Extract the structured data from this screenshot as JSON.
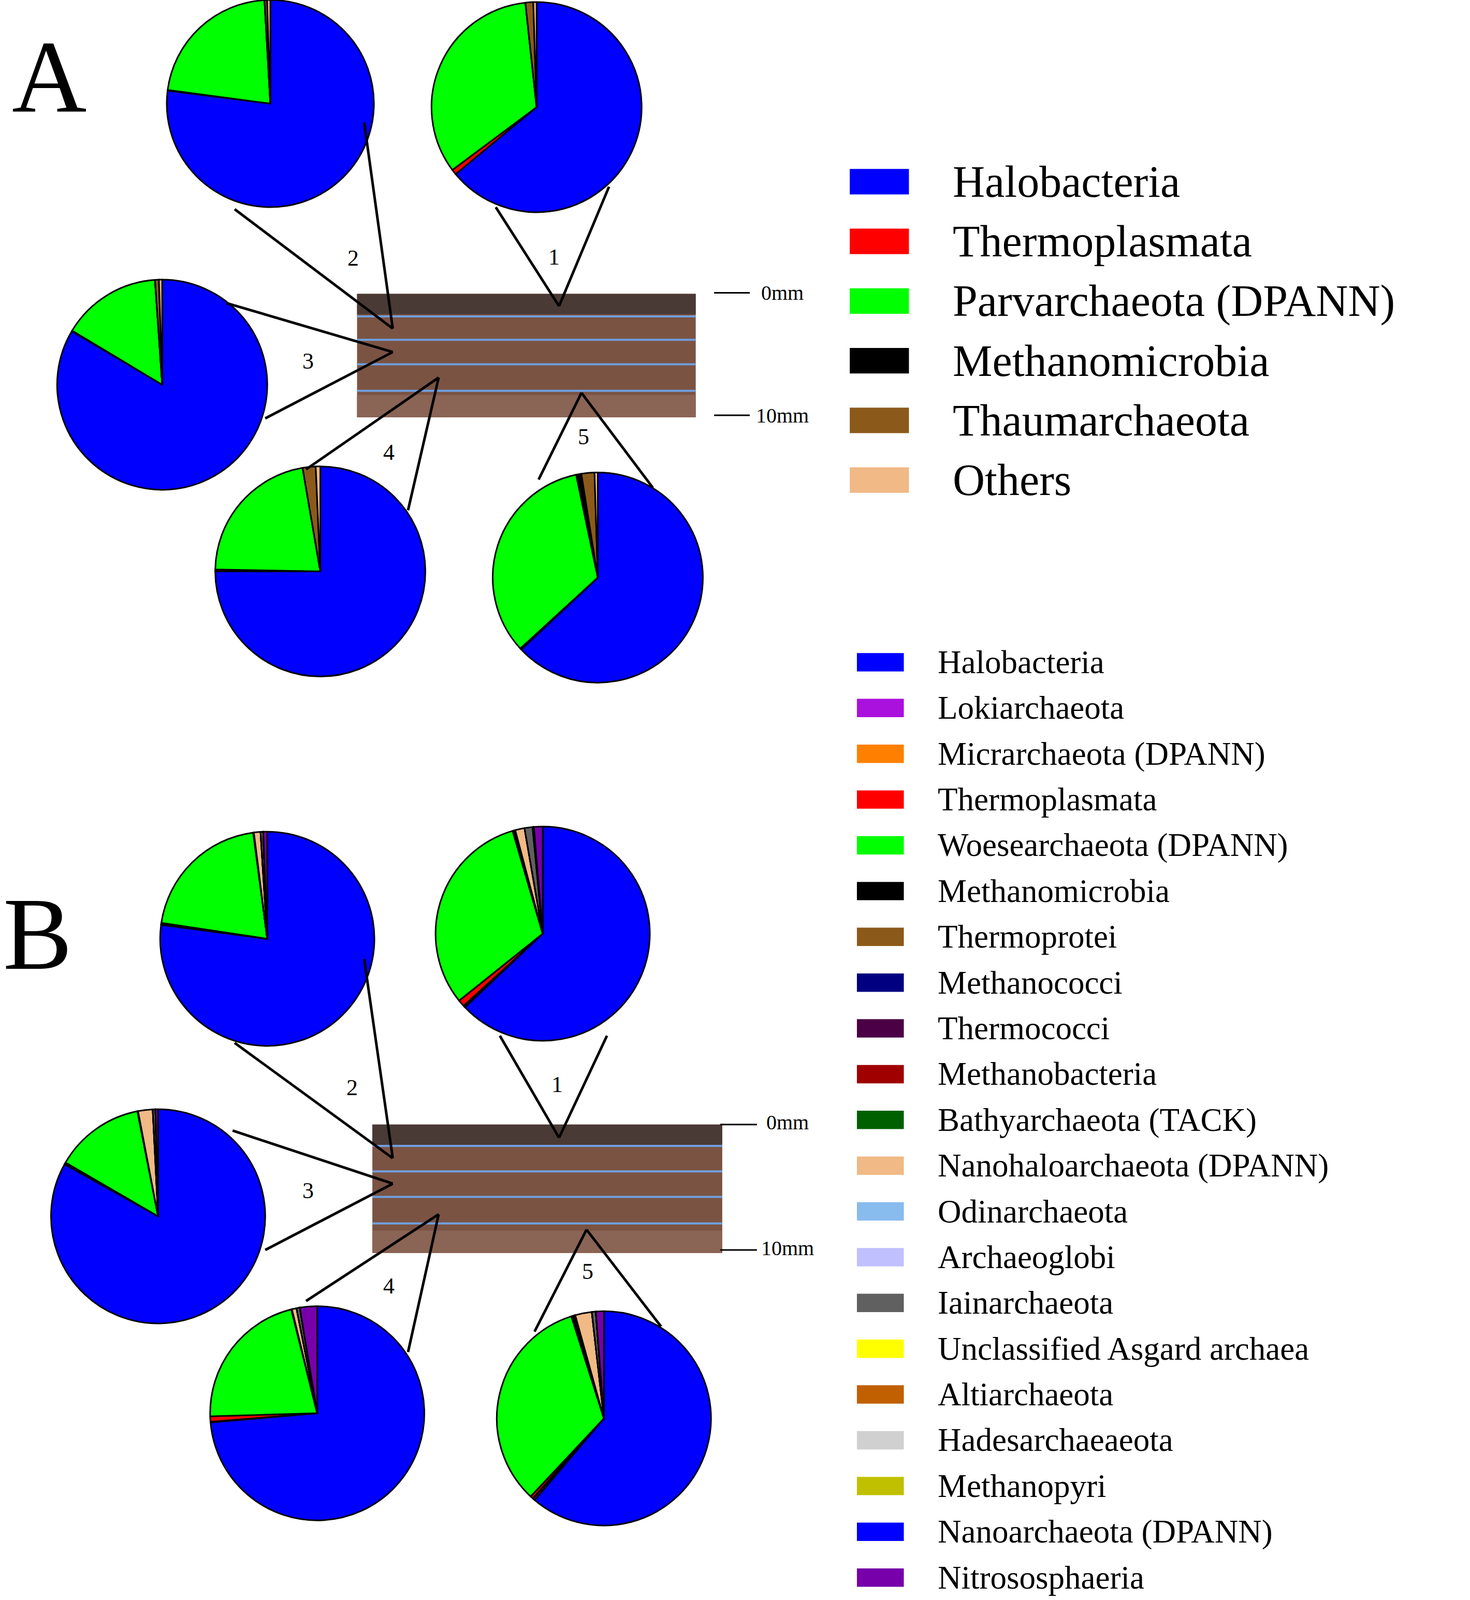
{
  "chart_data": [
    {
      "type": "pie",
      "title": "A",
      "categories": [
        "Halobacteria",
        "Thermoplasmata",
        "Parvarchaeota (DPANN)",
        "Methanomicrobia",
        "Thaumarchaeota",
        "Others"
      ],
      "colors": [
        "#0000ff",
        "#ff0000",
        "#00ff00",
        "#000000",
        "#8b5a1a",
        "#f0b985"
      ],
      "series": [
        {
          "name": "1",
          "values": [
            64,
            0.8,
            33.5,
            0,
            1.2,
            0.5
          ]
        },
        {
          "name": "2",
          "values": [
            77,
            0.1,
            22,
            0,
            0.4,
            0.5
          ]
        },
        {
          "name": "3",
          "values": [
            83.5,
            0.1,
            15.3,
            0,
            0.6,
            0.5
          ]
        },
        {
          "name": "4",
          "values": [
            75,
            0.3,
            22,
            0,
            2,
            0.7
          ]
        },
        {
          "name": "5",
          "values": [
            63,
            0.2,
            33.5,
            0.8,
            2,
            0.5
          ]
        }
      ],
      "depth_labels": [
        "0mm",
        "10mm"
      ]
    },
    {
      "type": "pie",
      "title": "B",
      "categories": [
        "Halobacteria",
        "Lokiarchaeota",
        "Micrarchaeota (DPANN)",
        "Thermoplasmata",
        "Woesearchaeota (DPANN)",
        "Methanomicrobia",
        "Thermoprotei",
        "Methanococci",
        "Thermococci",
        "Methanobacteria",
        "Bathyarchaeota (TACK)",
        "Nanohaloarchaeota (DPANN)",
        "Odinarchaeota",
        "Archaeoglobi",
        "Iainarchaeota",
        "Unclassified Asgard archaea",
        "Altiarchaeota",
        "Hadesarchaeaeota",
        "Methanopyri",
        "Nanoarchaeota (DPANN)",
        "Nitrososphaeria"
      ],
      "colors": [
        "#0000ff",
        "#aa11dd",
        "#ff8000",
        "#ff0000",
        "#00ff00",
        "#000000",
        "#8b5a1a",
        "#000080",
        "#4b0045",
        "#a00000",
        "#006000",
        "#f0b985",
        "#88bbee",
        "#c0c0ff",
        "#606060",
        "#ffff00",
        "#c06000",
        "#d0d0d0",
        "#c0c000",
        "#0000ff",
        "#7700aa"
      ],
      "series": [
        {
          "name": "1",
          "values": [
            62.5,
            0.2,
            0.1,
            1,
            31,
            0.2,
            0.1,
            0,
            0,
            0,
            0.1,
            1.4,
            0,
            0,
            1.2,
            0.1,
            0,
            0,
            0,
            0.1,
            1.3
          ]
        },
        {
          "name": "2",
          "values": [
            77,
            0.1,
            0,
            0.2,
            20.5,
            0.1,
            0,
            0,
            0,
            0,
            0,
            1,
            0,
            0,
            0.4,
            0,
            0,
            0,
            0,
            0,
            0.6
          ]
        },
        {
          "name": "3",
          "values": [
            83,
            0.1,
            0,
            0.2,
            13.5,
            0.1,
            0,
            0,
            0,
            0,
            0,
            2.2,
            0,
            0,
            0.4,
            0,
            0,
            0,
            0,
            0,
            0.4
          ]
        },
        {
          "name": "4",
          "values": [
            73.5,
            0.1,
            0,
            0.8,
            21.5,
            0.1,
            0,
            0,
            0,
            0,
            0,
            0.7,
            0,
            0,
            0.5,
            0,
            0,
            0,
            0,
            0,
            2.6
          ]
        },
        {
          "name": "5",
          "values": [
            61,
            0.3,
            0.1,
            0.4,
            33,
            0.5,
            0,
            0,
            0,
            0,
            0.1,
            2.5,
            0,
            0,
            0.6,
            0,
            0,
            0,
            0,
            0,
            1.2
          ]
        }
      ],
      "depth_labels": [
        "0mm",
        "10mm"
      ]
    }
  ]
}
